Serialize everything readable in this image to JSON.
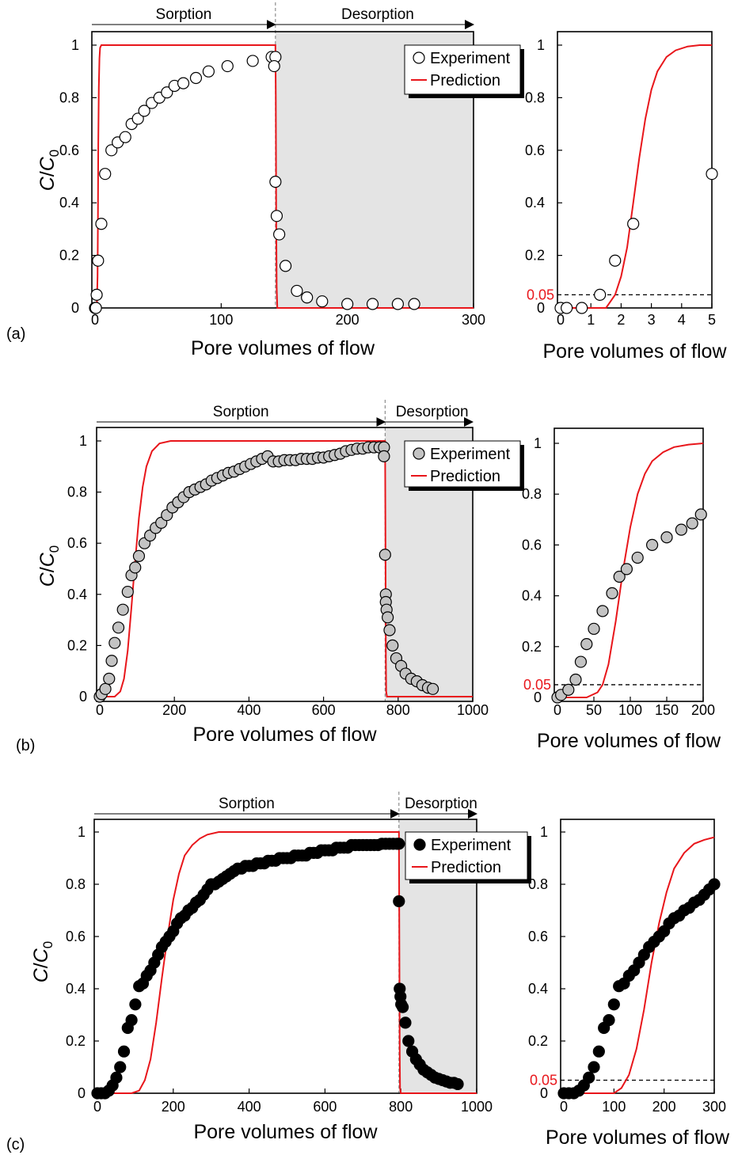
{
  "colors": {
    "prediction": "#e8161b",
    "desorption_shade": "#e4e4e4",
    "threshold_label": "#e8161b",
    "marker_a": "#ffffff",
    "marker_b": "#c3c3c3",
    "marker_c": "#000000"
  },
  "chart_data": [
    {
      "id": "a_main",
      "panel_letter": "(a)",
      "type": "scatter",
      "xlabel": "Pore volumes of flow",
      "ylabel": "C/C0",
      "xlim": [
        0,
        300
      ],
      "ylim": [
        0,
        1
      ],
      "xticks": [
        0,
        100,
        200,
        300
      ],
      "yticks": [
        0,
        0.2,
        0.4,
        0.6,
        0.8,
        1
      ],
      "xtick_labels": [
        "0",
        "100",
        "200",
        "300"
      ],
      "ytick_labels": [
        "0",
        "0.2",
        "0.4",
        "0.6",
        "0.8",
        "1"
      ],
      "phases": {
        "sorption_label": "Sorption",
        "desorption_label": "Desorption",
        "switch_x": 143
      },
      "legend": {
        "experiment": "Experiment",
        "prediction": "Prediction",
        "position": "top-right"
      },
      "marker": "white",
      "series": [
        {
          "name": "Experiment",
          "kind": "markers",
          "x": [
            0,
            0.2,
            0.7,
            1.3,
            2.4,
            5,
            8,
            13,
            18,
            24,
            29,
            34,
            39,
            45,
            51,
            57,
            63,
            70,
            80,
            90,
            105,
            125,
            140,
            143,
            142,
            143,
            144,
            146,
            151,
            160,
            168,
            180,
            200,
            220,
            240,
            253
          ],
          "y": [
            0,
            0,
            0,
            0.05,
            0.18,
            0.32,
            0.51,
            0.6,
            0.63,
            0.65,
            0.7,
            0.72,
            0.75,
            0.78,
            0.8,
            0.82,
            0.845,
            0.855,
            0.875,
            0.9,
            0.92,
            0.94,
            0.955,
            0.955,
            0.92,
            0.48,
            0.35,
            0.28,
            0.16,
            0.065,
            0.04,
            0.025,
            0.015,
            0.015,
            0.015,
            0.015
          ]
        },
        {
          "name": "Prediction",
          "kind": "line",
          "x": [
            0,
            1,
            1.5,
            2,
            2.3,
            2.6,
            3,
            3.5,
            4,
            5,
            143,
            143.3,
            143.6,
            144,
            144.5,
            300
          ],
          "y": [
            0,
            0,
            0.02,
            0.12,
            0.35,
            0.62,
            0.84,
            0.95,
            0.99,
            1,
            1,
            0.8,
            0.35,
            0.08,
            0,
            0
          ]
        }
      ]
    },
    {
      "id": "a_zoom",
      "type": "scatter",
      "xlabel": "Pore volumes of flow",
      "xlim": [
        0,
        5
      ],
      "ylim": [
        0,
        1
      ],
      "xticks": [
        0,
        1,
        2,
        3,
        4,
        5
      ],
      "yticks": [
        0,
        0.2,
        0.4,
        0.6,
        0.8,
        1
      ],
      "xtick_labels": [
        "0",
        "1",
        "2",
        "3",
        "4",
        "5"
      ],
      "ytick_labels": [
        "0",
        "0.2",
        "0.4",
        "0.6",
        "0.8",
        "1"
      ],
      "threshold": {
        "y": 0.05,
        "label": "0.05"
      },
      "marker": "white",
      "series": [
        {
          "name": "Experiment",
          "kind": "markers",
          "x": [
            0,
            0.2,
            0.7,
            1.3,
            1.8,
            2.4,
            5
          ],
          "y": [
            0,
            0,
            0,
            0.05,
            0.18,
            0.32,
            0.51
          ]
        },
        {
          "name": "Prediction",
          "kind": "line",
          "x": [
            0,
            1.5,
            1.8,
            2.0,
            2.2,
            2.4,
            2.6,
            2.8,
            3.0,
            3.2,
            3.5,
            3.8,
            4.2,
            4.6,
            5
          ],
          "y": [
            0,
            0,
            0.05,
            0.12,
            0.23,
            0.4,
            0.57,
            0.72,
            0.83,
            0.9,
            0.955,
            0.98,
            0.995,
            1,
            1
          ]
        }
      ]
    },
    {
      "id": "b_main",
      "panel_letter": "(b)",
      "type": "scatter",
      "xlabel": "Pore volumes of flow",
      "ylabel": "C/C0",
      "xlim": [
        0,
        1000
      ],
      "ylim": [
        0,
        1
      ],
      "xticks": [
        0,
        200,
        400,
        600,
        800,
        1000
      ],
      "yticks": [
        0,
        0.2,
        0.4,
        0.6,
        0.8,
        1
      ],
      "xtick_labels": [
        "0",
        "200",
        "400",
        "600",
        "800",
        "1000"
      ],
      "ytick_labels": [
        "0",
        "0.2",
        "0.4",
        "0.6",
        "0.8",
        "1"
      ],
      "phases": {
        "sorption_label": "Sorption",
        "desorption_label": "Desorption",
        "switch_x": 765
      },
      "legend": {
        "experiment": "Experiment",
        "prediction": "Prediction",
        "position": "top-right"
      },
      "marker": "gray",
      "series": [
        {
          "name": "Experiment",
          "kind": "markers",
          "x": [
            0,
            5,
            15,
            25,
            32,
            40,
            50,
            62,
            75,
            85,
            95,
            105,
            120,
            135,
            150,
            165,
            180,
            195,
            210,
            225,
            240,
            255,
            270,
            285,
            300,
            315,
            330,
            345,
            360,
            375,
            390,
            405,
            420,
            435,
            450,
            465,
            480,
            495,
            510,
            525,
            540,
            555,
            570,
            585,
            600,
            615,
            630,
            645,
            660,
            675,
            690,
            705,
            720,
            735,
            750,
            762,
            762,
            765,
            767,
            767,
            769,
            772,
            777,
            785,
            795,
            808,
            820,
            835,
            850,
            865,
            880,
            893
          ],
          "y": [
            0,
            0.01,
            0.03,
            0.07,
            0.14,
            0.21,
            0.27,
            0.34,
            0.41,
            0.475,
            0.505,
            0.55,
            0.6,
            0.63,
            0.66,
            0.68,
            0.71,
            0.74,
            0.76,
            0.78,
            0.8,
            0.81,
            0.82,
            0.83,
            0.845,
            0.855,
            0.865,
            0.875,
            0.88,
            0.89,
            0.9,
            0.91,
            0.92,
            0.93,
            0.94,
            0.92,
            0.92,
            0.925,
            0.925,
            0.925,
            0.93,
            0.93,
            0.93,
            0.935,
            0.935,
            0.94,
            0.945,
            0.95,
            0.96,
            0.965,
            0.97,
            0.97,
            0.975,
            0.975,
            0.975,
            0.975,
            0.94,
            0.555,
            0.4,
            0.37,
            0.34,
            0.31,
            0.26,
            0.2,
            0.15,
            0.12,
            0.09,
            0.07,
            0.06,
            0.045,
            0.035,
            0.03
          ]
        },
        {
          "name": "Prediction",
          "kind": "line",
          "x": [
            0,
            40,
            55,
            65,
            75,
            85,
            95,
            105,
            115,
            125,
            140,
            160,
            190,
            230,
            300,
            765,
            766,
            767,
            768,
            770,
            1000
          ],
          "y": [
            0,
            0,
            0.02,
            0.07,
            0.18,
            0.35,
            0.53,
            0.7,
            0.82,
            0.9,
            0.96,
            0.99,
            1,
            1,
            1,
            1,
            0.6,
            0.15,
            0.02,
            0,
            0
          ]
        }
      ]
    },
    {
      "id": "b_zoom",
      "type": "scatter",
      "xlabel": "Pore volumes of flow",
      "xlim": [
        0,
        200
      ],
      "ylim": [
        0,
        1
      ],
      "xticks": [
        0,
        50,
        100,
        150,
        200
      ],
      "yticks": [
        0,
        0.2,
        0.4,
        0.6,
        0.8,
        1
      ],
      "xtick_labels": [
        "0",
        "50",
        "100",
        "150",
        "200"
      ],
      "ytick_labels": [
        "0",
        "0.2",
        "0.4",
        "0.6",
        "0.8",
        "1"
      ],
      "threshold": {
        "y": 0.05,
        "label": "0.05"
      },
      "marker": "gray",
      "series": [
        {
          "name": "Experiment",
          "kind": "markers",
          "x": [
            0,
            5,
            15,
            25,
            32,
            40,
            50,
            62,
            75,
            85,
            95,
            110,
            130,
            150,
            170,
            185,
            197
          ],
          "y": [
            0,
            0.01,
            0.03,
            0.07,
            0.14,
            0.21,
            0.27,
            0.34,
            0.41,
            0.475,
            0.505,
            0.55,
            0.6,
            0.63,
            0.66,
            0.685,
            0.72
          ]
        },
        {
          "name": "Prediction",
          "kind": "line",
          "x": [
            0,
            40,
            55,
            62,
            70,
            80,
            90,
            100,
            110,
            120,
            130,
            145,
            160,
            180,
            200
          ],
          "y": [
            0,
            0,
            0.02,
            0.05,
            0.13,
            0.3,
            0.5,
            0.67,
            0.8,
            0.88,
            0.93,
            0.965,
            0.985,
            0.995,
            1
          ]
        }
      ]
    },
    {
      "id": "c_main",
      "panel_letter": "(c)",
      "type": "scatter",
      "xlabel": "Pore volumes of flow",
      "ylabel": "C/C0",
      "xlim": [
        0,
        1000
      ],
      "ylim": [
        0,
        1
      ],
      "xticks": [
        0,
        200,
        400,
        600,
        800,
        1000
      ],
      "yticks": [
        0,
        0.2,
        0.4,
        0.6,
        0.8,
        1
      ],
      "xtick_labels": [
        "0",
        "200",
        "400",
        "600",
        "800",
        "1000"
      ],
      "ytick_labels": [
        "0",
        "0.2",
        "0.4",
        "0.6",
        "0.8",
        "1"
      ],
      "phases": {
        "sorption_label": "Sorption",
        "desorption_label": "Desorption",
        "switch_x": 795
      },
      "legend": {
        "experiment": "Experiment",
        "prediction": "Prediction",
        "position": "top-right"
      },
      "marker": "black",
      "series": [
        {
          "name": "Experiment",
          "kind": "markers",
          "x": [
            0,
            10,
            20,
            30,
            40,
            50,
            60,
            70,
            80,
            90,
            100,
            110,
            120,
            130,
            140,
            150,
            160,
            170,
            180,
            190,
            200,
            210,
            220,
            230,
            240,
            250,
            260,
            270,
            280,
            290,
            300,
            310,
            320,
            330,
            340,
            350,
            360,
            370,
            380,
            390,
            400,
            410,
            420,
            430,
            440,
            450,
            460,
            470,
            480,
            490,
            500,
            510,
            520,
            530,
            540,
            550,
            560,
            570,
            580,
            590,
            600,
            610,
            620,
            630,
            640,
            650,
            660,
            670,
            680,
            690,
            700,
            710,
            720,
            730,
            740,
            750,
            760,
            770,
            780,
            790,
            795,
            795,
            797,
            799,
            801,
            805,
            812,
            820,
            830,
            840,
            850,
            860,
            870,
            880,
            890,
            900,
            910,
            920,
            930,
            940,
            950
          ],
          "y": [
            0,
            0,
            0,
            0.01,
            0.03,
            0.06,
            0.1,
            0.16,
            0.25,
            0.28,
            0.34,
            0.41,
            0.42,
            0.45,
            0.47,
            0.5,
            0.53,
            0.56,
            0.58,
            0.6,
            0.62,
            0.65,
            0.67,
            0.68,
            0.7,
            0.71,
            0.73,
            0.74,
            0.76,
            0.78,
            0.8,
            0.8,
            0.81,
            0.82,
            0.83,
            0.84,
            0.85,
            0.86,
            0.86,
            0.87,
            0.87,
            0.87,
            0.88,
            0.88,
            0.88,
            0.89,
            0.89,
            0.89,
            0.9,
            0.9,
            0.9,
            0.9,
            0.91,
            0.91,
            0.91,
            0.91,
            0.92,
            0.92,
            0.92,
            0.93,
            0.93,
            0.93,
            0.93,
            0.94,
            0.94,
            0.94,
            0.94,
            0.95,
            0.95,
            0.95,
            0.95,
            0.95,
            0.95,
            0.95,
            0.95,
            0.955,
            0.955,
            0.955,
            0.955,
            0.955,
            0.955,
            0.735,
            0.4,
            0.37,
            0.34,
            0.33,
            0.27,
            0.2,
            0.16,
            0.13,
            0.11,
            0.09,
            0.08,
            0.07,
            0.06,
            0.055,
            0.05,
            0.045,
            0.04,
            0.04,
            0.035
          ]
        },
        {
          "name": "Prediction",
          "kind": "line",
          "x": [
            0,
            90,
            110,
            125,
            140,
            155,
            170,
            185,
            200,
            215,
            230,
            250,
            270,
            290,
            320,
            360,
            795,
            796,
            797,
            798,
            800,
            1000
          ],
          "y": [
            0,
            0,
            0.01,
            0.05,
            0.13,
            0.27,
            0.44,
            0.6,
            0.74,
            0.84,
            0.91,
            0.95,
            0.975,
            0.99,
            1,
            1,
            1,
            0.6,
            0.15,
            0.02,
            0,
            0
          ]
        }
      ]
    },
    {
      "id": "c_zoom",
      "type": "scatter",
      "xlabel": "Pore volumes of flow",
      "xlim": [
        0,
        300
      ],
      "ylim": [
        0,
        1
      ],
      "xticks": [
        0,
        100,
        200,
        300
      ],
      "yticks": [
        0,
        0.2,
        0.4,
        0.6,
        0.8,
        1
      ],
      "xtick_labels": [
        "0",
        "100",
        "200",
        "300"
      ],
      "ytick_labels": [
        "0",
        "0.2",
        "0.4",
        "0.6",
        "0.8",
        "1"
      ],
      "threshold": {
        "y": 0.05,
        "label": "0.05"
      },
      "marker": "black",
      "series": [
        {
          "name": "Experiment",
          "kind": "markers",
          "x": [
            0,
            10,
            20,
            30,
            40,
            50,
            60,
            70,
            80,
            90,
            100,
            110,
            120,
            130,
            140,
            150,
            160,
            170,
            180,
            190,
            200,
            210,
            220,
            230,
            240,
            250,
            260,
            270,
            280,
            290,
            300
          ],
          "y": [
            0,
            0,
            0,
            0.01,
            0.03,
            0.06,
            0.1,
            0.16,
            0.25,
            0.28,
            0.34,
            0.41,
            0.42,
            0.45,
            0.47,
            0.5,
            0.53,
            0.56,
            0.58,
            0.6,
            0.62,
            0.65,
            0.67,
            0.68,
            0.7,
            0.71,
            0.73,
            0.74,
            0.76,
            0.78,
            0.8
          ]
        },
        {
          "name": "Prediction",
          "kind": "line",
          "x": [
            0,
            100,
            115,
            130,
            145,
            160,
            175,
            190,
            205,
            220,
            240,
            260,
            280,
            300
          ],
          "y": [
            0,
            0,
            0.02,
            0.07,
            0.17,
            0.32,
            0.5,
            0.65,
            0.77,
            0.86,
            0.92,
            0.955,
            0.97,
            0.98
          ]
        }
      ]
    }
  ]
}
